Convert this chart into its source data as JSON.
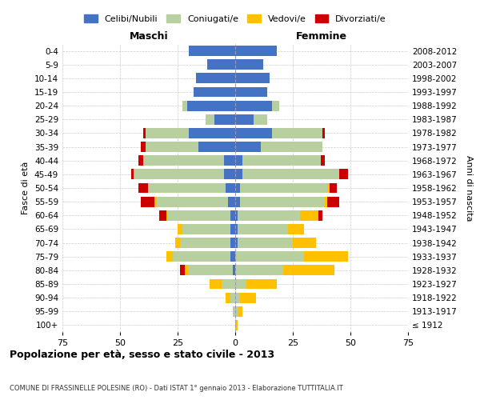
{
  "age_groups": [
    "100+",
    "95-99",
    "90-94",
    "85-89",
    "80-84",
    "75-79",
    "70-74",
    "65-69",
    "60-64",
    "55-59",
    "50-54",
    "45-49",
    "40-44",
    "35-39",
    "30-34",
    "25-29",
    "20-24",
    "15-19",
    "10-14",
    "5-9",
    "0-4"
  ],
  "birth_years": [
    "≤ 1912",
    "1913-1917",
    "1918-1922",
    "1923-1927",
    "1928-1932",
    "1933-1937",
    "1938-1942",
    "1943-1947",
    "1948-1952",
    "1953-1957",
    "1958-1962",
    "1963-1967",
    "1968-1972",
    "1973-1977",
    "1978-1982",
    "1983-1987",
    "1988-1992",
    "1993-1997",
    "1998-2002",
    "2003-2007",
    "2008-2012"
  ],
  "colors": {
    "celibi": "#4472c4",
    "coniugati": "#b8cfa0",
    "vedovi": "#ffc000",
    "divorziati": "#cc0000"
  },
  "maschi": {
    "celibi": [
      0,
      0,
      0,
      0,
      1,
      2,
      2,
      2,
      2,
      3,
      4,
      5,
      5,
      16,
      20,
      9,
      21,
      18,
      17,
      12,
      20
    ],
    "coniugati": [
      0,
      1,
      2,
      6,
      19,
      25,
      22,
      21,
      27,
      31,
      34,
      39,
      35,
      23,
      19,
      4,
      2,
      0,
      0,
      0,
      0
    ],
    "vedovi": [
      0,
      0,
      2,
      5,
      2,
      3,
      2,
      2,
      1,
      1,
      0,
      0,
      0,
      0,
      0,
      0,
      0,
      0,
      0,
      0,
      0
    ],
    "divorziati": [
      0,
      0,
      0,
      0,
      2,
      0,
      0,
      0,
      3,
      6,
      4,
      1,
      2,
      2,
      1,
      0,
      0,
      0,
      0,
      0,
      0
    ]
  },
  "femmine": {
    "celibi": [
      0,
      0,
      0,
      0,
      0,
      0,
      1,
      1,
      1,
      2,
      2,
      3,
      3,
      11,
      16,
      8,
      16,
      14,
      15,
      12,
      18
    ],
    "coniugati": [
      0,
      1,
      2,
      5,
      21,
      30,
      24,
      22,
      27,
      37,
      38,
      42,
      34,
      27,
      22,
      6,
      3,
      0,
      0,
      0,
      0
    ],
    "vedovi": [
      1,
      2,
      7,
      13,
      22,
      19,
      10,
      7,
      8,
      1,
      1,
      0,
      0,
      0,
      0,
      0,
      0,
      0,
      0,
      0,
      0
    ],
    "divorziati": [
      0,
      0,
      0,
      0,
      0,
      0,
      0,
      0,
      2,
      5,
      3,
      4,
      2,
      0,
      1,
      0,
      0,
      0,
      0,
      0,
      0
    ]
  },
  "title": "Popolazione per età, sesso e stato civile - 2013",
  "subtitle": "COMUNE DI FRASSINELLE POLESINE (RO) - Dati ISTAT 1° gennaio 2013 - Elaborazione TUTTITALIA.IT",
  "xlabel_left": "Maschi",
  "xlabel_right": "Femmine",
  "ylabel_left": "Fasce di età",
  "ylabel_right": "Anni di nascita",
  "xlim": 75,
  "legend_labels": [
    "Celibi/Nubili",
    "Coniugati/e",
    "Vedovi/e",
    "Divorziati/e"
  ],
  "bg_color": "#ffffff",
  "grid_color": "#cccccc"
}
